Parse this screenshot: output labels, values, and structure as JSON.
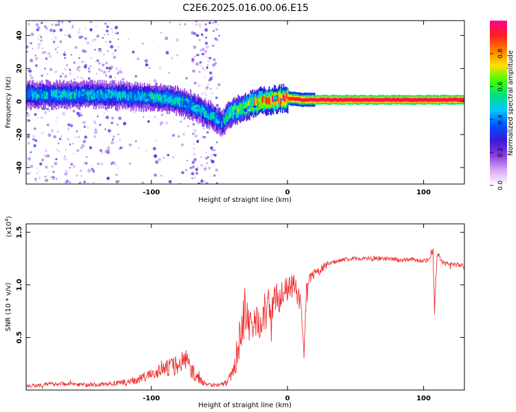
{
  "title": "C2E6.2025.016.00.06.E15",
  "chart_data": [
    {
      "type": "heatmap",
      "xlabel": "Height of straight line (km)",
      "ylabel": "Frequency (Hz)",
      "xlim": [
        -192,
        130
      ],
      "ylim": [
        -50,
        49
      ],
      "xticks": [
        -100,
        0,
        100
      ],
      "yticks": [
        -40,
        -20,
        0,
        20,
        40
      ],
      "colorbar": {
        "label": "Normalized spectral amplitude",
        "range": [
          0.0,
          1.0
        ],
        "ticks": [
          "0.0",
          "0.2",
          "0.4",
          "0.6",
          "0.8"
        ],
        "tick_values": [
          0.0,
          0.2,
          0.4,
          0.6,
          0.8
        ],
        "colors": [
          "#ffffff",
          "#d9a8f5",
          "#8a3be0",
          "#3a18d8",
          "#0050ff",
          "#00c8ff",
          "#00e080",
          "#40ff00",
          "#ffe000",
          "#ff8000",
          "#ff2020",
          "#ff0090"
        ]
      },
      "ridge": {
        "x": [
          -192,
          -170,
          -150,
          -130,
          -110,
          -90,
          -75,
          -65,
          -55,
          -48,
          -44,
          -38,
          -30,
          -20,
          -10,
          0,
          10,
          30,
          60,
          90,
          110,
          130
        ],
        "freq": [
          4,
          4,
          4,
          4,
          3,
          2,
          -1,
          -5,
          -9,
          -13,
          -8,
          -5,
          -3,
          0,
          1,
          2,
          1,
          1,
          1,
          1,
          1,
          1
        ],
        "amplitude": [
          0.45,
          0.45,
          0.45,
          0.45,
          0.45,
          0.48,
          0.48,
          0.45,
          0.45,
          0.4,
          0.55,
          0.6,
          0.7,
          0.8,
          0.85,
          0.9,
          0.92,
          0.95,
          0.95,
          0.95,
          0.95,
          0.95
        ]
      }
    },
    {
      "type": "line",
      "xlabel": "Height of straight line (km)",
      "ylabel": "SNR (10 * v/v)",
      "y_scale_label": "(x10",
      "y_scale_exponent": "4",
      "xlim": [
        -192,
        130
      ],
      "ylim": [
        0,
        1.58
      ],
      "xticks": [
        -100,
        0,
        100
      ],
      "yticks": [
        0.5,
        1.0,
        1.5
      ],
      "ytick_labels": [
        "0.5",
        "1.0",
        "1.5"
      ],
      "color": "#ee3030",
      "series": [
        {
          "x": [
            -192,
            -180,
            -170,
            -160,
            -150,
            -140,
            -130,
            -120,
            -110,
            -100,
            -90,
            -80,
            -75,
            -70,
            -65,
            -60,
            -55,
            -50,
            -45,
            -40,
            -37,
            -34,
            -31,
            -28,
            -25,
            -20,
            -15,
            -10,
            -5,
            0,
            5,
            10,
            12,
            14,
            16,
            20,
            25,
            30,
            35,
            40,
            50,
            60,
            70,
            80,
            90,
            100,
            105,
            107,
            108,
            110,
            115,
            120,
            130
          ],
          "y": [
            0.04,
            0.05,
            0.06,
            0.06,
            0.05,
            0.05,
            0.06,
            0.07,
            0.1,
            0.15,
            0.2,
            0.25,
            0.3,
            0.18,
            0.1,
            0.06,
            0.05,
            0.05,
            0.07,
            0.15,
            0.35,
            0.6,
            0.75,
            0.5,
            0.6,
            0.7,
            0.75,
            0.85,
            0.9,
            0.95,
            1.0,
            0.8,
            0.3,
            0.9,
            1.05,
            1.1,
            1.15,
            1.2,
            1.22,
            1.24,
            1.25,
            1.25,
            1.25,
            1.24,
            1.24,
            1.23,
            1.25,
            1.4,
            0.75,
            1.3,
            1.2,
            1.2,
            1.18
          ],
          "noise_envelope": [
            0.02,
            0.02,
            0.02,
            0.02,
            0.02,
            0.02,
            0.02,
            0.03,
            0.04,
            0.05,
            0.08,
            0.1,
            0.12,
            0.08,
            0.05,
            0.02,
            0.02,
            0.02,
            0.03,
            0.08,
            0.15,
            0.2,
            0.25,
            0.25,
            0.25,
            0.2,
            0.2,
            0.15,
            0.15,
            0.12,
            0.1,
            0.1,
            0.1,
            0.1,
            0.08,
            0.05,
            0.04,
            0.03,
            0.02,
            0.02,
            0.02,
            0.02,
            0.02,
            0.02,
            0.02,
            0.02,
            0.03,
            0.1,
            0.1,
            0.03,
            0.02,
            0.02,
            0.02
          ]
        }
      ]
    }
  ]
}
